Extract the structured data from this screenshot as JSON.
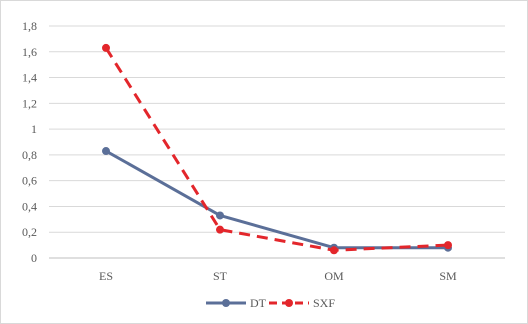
{
  "chart_data": {
    "type": "line",
    "title": "",
    "xlabel": "",
    "ylabel": "",
    "categories": [
      "ES",
      "ST",
      "OM",
      "SM"
    ],
    "y_tick_labels": [
      "0",
      "0,2",
      "0,4",
      "0,6",
      "0,8",
      "1",
      "1,2",
      "1,4",
      "1,6",
      "1,8"
    ],
    "ylim": [
      0,
      1.8
    ],
    "grid": true,
    "legend_position": "bottom",
    "series": [
      {
        "name": "DT",
        "values": [
          0.83,
          0.33,
          0.08,
          0.08
        ],
        "color": "#5b6f98",
        "style": "solid"
      },
      {
        "name": "SXF",
        "values": [
          1.63,
          0.22,
          0.06,
          0.1
        ],
        "color": "#e3262b",
        "style": "dashed"
      }
    ]
  }
}
